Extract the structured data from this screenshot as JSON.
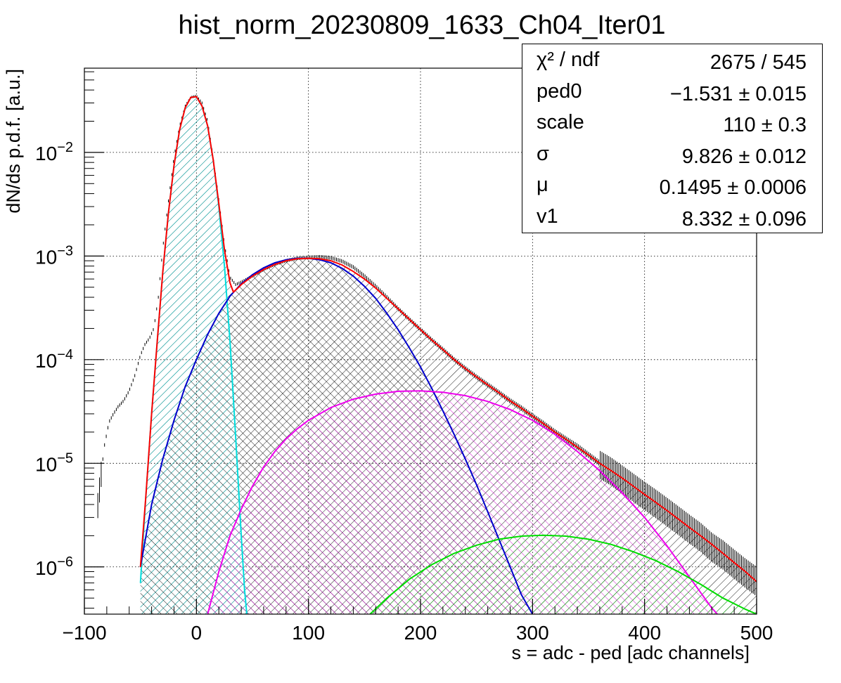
{
  "chart_data": {
    "type": "histogram-fit",
    "title": "hist_norm_20230809_1633_Ch04_Iter01",
    "xlabel": "s = adc - ped [adc channels]",
    "ylabel": "dN/ds p.d.f. [a.u.]",
    "xlim": [
      -100,
      500
    ],
    "ylim": [
      3.5e-07,
      0.065
    ],
    "yscale": "log",
    "grid": true,
    "x_ticks": [
      -100,
      0,
      100,
      200,
      300,
      400,
      500
    ],
    "x_tick_labels": [
      "−100",
      "0",
      "100",
      "200",
      "300",
      "400",
      "500"
    ],
    "y_ticks": [
      1e-06,
      1e-05,
      0.0001,
      0.001,
      0.01
    ],
    "y_tick_labels": [
      {
        "base": "10",
        "exp": "−6"
      },
      {
        "base": "10",
        "exp": "−5"
      },
      {
        "base": "10",
        "exp": "−4"
      },
      {
        "base": "10",
        "exp": "−3"
      },
      {
        "base": "10",
        "exp": "−2"
      }
    ],
    "fit_parameters": [
      {
        "name": "χ² / ndf",
        "value": "2675 / 545"
      },
      {
        "name": "ped0",
        "value": "−1.531 ± 0.015"
      },
      {
        "name": "scale",
        "value": "110 ± 0.3"
      },
      {
        "name": "σ",
        "value": "9.826 ± 0.012"
      },
      {
        "name": "μ",
        "value": "0.1495 ± 0.0006"
      },
      {
        "name": "v1",
        "value": "8.332 ± 0.096"
      }
    ],
    "series": [
      {
        "kind": "histogram",
        "color": "#000000",
        "points": [
          [
            -88,
            4e-06
          ],
          [
            -85,
            8e-06
          ],
          [
            -82,
            1.5e-05
          ],
          [
            -78,
            2.5e-05
          ],
          [
            -74,
            3e-05
          ],
          [
            -70,
            3.5e-05
          ],
          [
            -65,
            4e-05
          ],
          [
            -60,
            5e-05
          ],
          [
            -55,
            7e-05
          ],
          [
            -50,
            0.00011
          ],
          [
            -46,
            0.00014
          ],
          [
            -42,
            0.00016
          ],
          [
            -38,
            0.0002
          ],
          [
            -34,
            0.0004
          ],
          [
            -30,
            0.0012
          ],
          [
            -25,
            0.0034
          ],
          [
            -20,
            0.009
          ],
          [
            -15,
            0.018
          ],
          [
            -10,
            0.028
          ],
          [
            -5,
            0.034
          ],
          [
            0,
            0.035
          ],
          [
            5,
            0.03
          ],
          [
            10,
            0.02
          ],
          [
            15,
            0.009
          ],
          [
            20,
            0.0035
          ],
          [
            25,
            0.0013
          ],
          [
            30,
            0.00062
          ],
          [
            35,
            0.00053
          ],
          [
            40,
            0.00056
          ],
          [
            50,
            0.00064
          ],
          [
            60,
            0.00074
          ],
          [
            70,
            0.00083
          ],
          [
            80,
            0.0009
          ],
          [
            90,
            0.00095
          ],
          [
            100,
            0.00097
          ],
          [
            110,
            0.00098
          ],
          [
            120,
            0.00096
          ],
          [
            130,
            0.00089
          ],
          [
            140,
            0.00078
          ],
          [
            150,
            0.00064
          ],
          [
            160,
            0.00051
          ],
          [
            170,
            0.0004
          ],
          [
            180,
            0.00031
          ],
          [
            190,
            0.000245
          ],
          [
            200,
            0.000195
          ],
          [
            210,
            0.000155
          ],
          [
            220,
            0.000125
          ],
          [
            230,
            0.0001
          ],
          [
            240,
            8.2e-05
          ],
          [
            250,
            6.8e-05
          ],
          [
            260,
            5.7e-05
          ],
          [
            270,
            4.8e-05
          ],
          [
            280,
            4e-05
          ],
          [
            290,
            3.4e-05
          ],
          [
            300,
            2.85e-05
          ],
          [
            310,
            2.4e-05
          ],
          [
            320,
            2e-05
          ],
          [
            330,
            1.7e-05
          ],
          [
            340,
            1.45e-05
          ],
          [
            350,
            1.2e-05
          ],
          [
            360,
            1e-05
          ],
          [
            370,
            8.6e-06
          ],
          [
            380,
            7.2e-06
          ],
          [
            390,
            6e-06
          ],
          [
            400,
            5e-06
          ],
          [
            410,
            4.2e-06
          ],
          [
            420,
            3.5e-06
          ],
          [
            430,
            2.9e-06
          ],
          [
            440,
            2.4e-06
          ],
          [
            450,
            2e-06
          ],
          [
            460,
            1.6e-06
          ],
          [
            470,
            1.35e-06
          ],
          [
            480,
            1.1e-06
          ],
          [
            490,
            9e-07
          ],
          [
            500,
            7.5e-07
          ]
        ]
      },
      {
        "kind": "total-fit",
        "color": "#ff0000",
        "points": [
          [
            -50,
            1e-06
          ],
          [
            -45,
            5e-06
          ],
          [
            -40,
            3e-05
          ],
          [
            -35,
            0.00015
          ],
          [
            -30,
            0.0007
          ],
          [
            -25,
            0.0026
          ],
          [
            -20,
            0.0075
          ],
          [
            -15,
            0.0165
          ],
          [
            -10,
            0.027
          ],
          [
            -5,
            0.034
          ],
          [
            0,
            0.0345
          ],
          [
            5,
            0.028
          ],
          [
            10,
            0.018
          ],
          [
            15,
            0.0085
          ],
          [
            20,
            0.0032
          ],
          [
            25,
            0.00115
          ],
          [
            30,
            0.00055
          ],
          [
            33,
            0.00045
          ],
          [
            36,
            0.00048
          ],
          [
            40,
            0.00053
          ],
          [
            50,
            0.00064
          ],
          [
            60,
            0.00074
          ],
          [
            70,
            0.00083
          ],
          [
            80,
            0.0009
          ],
          [
            90,
            0.00094
          ],
          [
            100,
            0.00095
          ],
          [
            110,
            0.00094
          ],
          [
            120,
            0.0009
          ],
          [
            130,
            0.00082
          ],
          [
            140,
            0.00071
          ],
          [
            150,
            0.0006
          ],
          [
            160,
            0.00049
          ],
          [
            170,
            0.00039
          ],
          [
            180,
            0.00031
          ],
          [
            190,
            0.000245
          ],
          [
            200,
            0.000195
          ],
          [
            210,
            0.000155
          ],
          [
            220,
            0.000125
          ],
          [
            230,
            0.0001
          ],
          [
            240,
            8.2e-05
          ],
          [
            250,
            6.8e-05
          ],
          [
            260,
            5.7e-05
          ],
          [
            270,
            4.8e-05
          ],
          [
            280,
            4e-05
          ],
          [
            290,
            3.4e-05
          ],
          [
            300,
            2.85e-05
          ],
          [
            310,
            2.4e-05
          ],
          [
            320,
            2e-05
          ],
          [
            330,
            1.7e-05
          ],
          [
            340,
            1.43e-05
          ],
          [
            350,
            1.2e-05
          ],
          [
            360,
            1e-05
          ],
          [
            370,
            8.5e-06
          ],
          [
            380,
            7.2e-06
          ],
          [
            390,
            6e-06
          ],
          [
            400,
            5e-06
          ],
          [
            410,
            4.2e-06
          ],
          [
            420,
            3.5e-06
          ],
          [
            430,
            2.9e-06
          ],
          [
            440,
            2.4e-06
          ],
          [
            450,
            2e-06
          ],
          [
            460,
            1.65e-06
          ],
          [
            470,
            1.35e-06
          ],
          [
            480,
            1.1e-06
          ],
          [
            490,
            9e-07
          ],
          [
            500,
            7.2e-07
          ]
        ]
      },
      {
        "kind": "component",
        "color": "#00dddd",
        "fill_hatch": true,
        "points": [
          [
            -50,
            7e-07
          ],
          [
            -45,
            5e-06
          ],
          [
            -40,
            3e-05
          ],
          [
            -35,
            0.00015
          ],
          [
            -30,
            0.0007
          ],
          [
            -25,
            0.0026
          ],
          [
            -20,
            0.0075
          ],
          [
            -15,
            0.0165
          ],
          [
            -10,
            0.027
          ],
          [
            -5,
            0.034
          ],
          [
            0,
            0.0345
          ],
          [
            5,
            0.028
          ],
          [
            10,
            0.018
          ],
          [
            15,
            0.0085
          ],
          [
            20,
            0.003
          ],
          [
            25,
            0.0008
          ],
          [
            30,
            0.00015
          ],
          [
            35,
            1.8e-05
          ],
          [
            40,
            2e-06
          ],
          [
            43,
            6e-07
          ],
          [
            45,
            3.5e-07
          ]
        ]
      },
      {
        "kind": "component",
        "color": "#0000cc",
        "fill_hatch": true,
        "points": [
          [
            -50,
            1e-06
          ],
          [
            -45,
            2e-06
          ],
          [
            -40,
            4e-06
          ],
          [
            -30,
            1.1e-05
          ],
          [
            -20,
            2.6e-05
          ],
          [
            -10,
            5.5e-05
          ],
          [
            0,
            0.0001
          ],
          [
            10,
            0.000175
          ],
          [
            20,
            0.00028
          ],
          [
            30,
            0.00041
          ],
          [
            40,
            0.00054
          ],
          [
            50,
            0.00066
          ],
          [
            60,
            0.00077
          ],
          [
            70,
            0.00086
          ],
          [
            80,
            0.00092
          ],
          [
            90,
            0.00095
          ],
          [
            100,
            0.00095
          ],
          [
            110,
            0.00092
          ],
          [
            120,
            0.00086
          ],
          [
            130,
            0.00076
          ],
          [
            140,
            0.00064
          ],
          [
            150,
            0.00051
          ],
          [
            160,
            0.00039
          ],
          [
            170,
            0.00028
          ],
          [
            180,
            0.000195
          ],
          [
            190,
            0.00013
          ],
          [
            200,
            8.5e-05
          ],
          [
            210,
            5.3e-05
          ],
          [
            220,
            3.2e-05
          ],
          [
            230,
            1.9e-05
          ],
          [
            240,
            1.1e-05
          ],
          [
            250,
            6.2e-06
          ],
          [
            260,
            3.4e-06
          ],
          [
            270,
            1.85e-06
          ],
          [
            280,
            1e-06
          ],
          [
            290,
            5.4e-07
          ],
          [
            300,
            3.5e-07
          ]
        ]
      },
      {
        "kind": "component",
        "color": "#ee00ee",
        "fill_hatch": true,
        "points": [
          [
            10,
            3.5e-07
          ],
          [
            20,
            9e-07
          ],
          [
            30,
            2e-06
          ],
          [
            40,
            3.6e-06
          ],
          [
            50,
            6e-06
          ],
          [
            60,
            9.2e-06
          ],
          [
            70,
            1.3e-05
          ],
          [
            80,
            1.72e-05
          ],
          [
            90,
            2.15e-05
          ],
          [
            100,
            2.6e-05
          ],
          [
            120,
            3.45e-05
          ],
          [
            140,
            4.15e-05
          ],
          [
            160,
            4.65e-05
          ],
          [
            180,
            4.95e-05
          ],
          [
            200,
            5e-05
          ],
          [
            220,
            4.85e-05
          ],
          [
            240,
            4.5e-05
          ],
          [
            260,
            3.95e-05
          ],
          [
            280,
            3.3e-05
          ],
          [
            300,
            2.6e-05
          ],
          [
            320,
            1.9e-05
          ],
          [
            340,
            1.3e-05
          ],
          [
            360,
            8.5e-06
          ],
          [
            380,
            5.2e-06
          ],
          [
            400,
            3e-06
          ],
          [
            420,
            1.6e-06
          ],
          [
            440,
            8e-07
          ],
          [
            460,
            4e-07
          ],
          [
            465,
            3.5e-07
          ]
        ]
      },
      {
        "kind": "component",
        "color": "#00dd00",
        "fill_hatch": true,
        "points": [
          [
            155,
            3.5e-07
          ],
          [
            170,
            5e-07
          ],
          [
            190,
            7.6e-07
          ],
          [
            210,
            1.05e-06
          ],
          [
            230,
            1.35e-06
          ],
          [
            250,
            1.62e-06
          ],
          [
            270,
            1.85e-06
          ],
          [
            290,
            1.98e-06
          ],
          [
            310,
            2.02e-06
          ],
          [
            330,
            1.98e-06
          ],
          [
            350,
            1.85e-06
          ],
          [
            370,
            1.65e-06
          ],
          [
            390,
            1.4e-06
          ],
          [
            410,
            1.15e-06
          ],
          [
            430,
            9e-07
          ],
          [
            450,
            6.8e-07
          ],
          [
            470,
            5e-07
          ],
          [
            490,
            3.9e-07
          ],
          [
            500,
            3.5e-07
          ]
        ]
      }
    ]
  }
}
